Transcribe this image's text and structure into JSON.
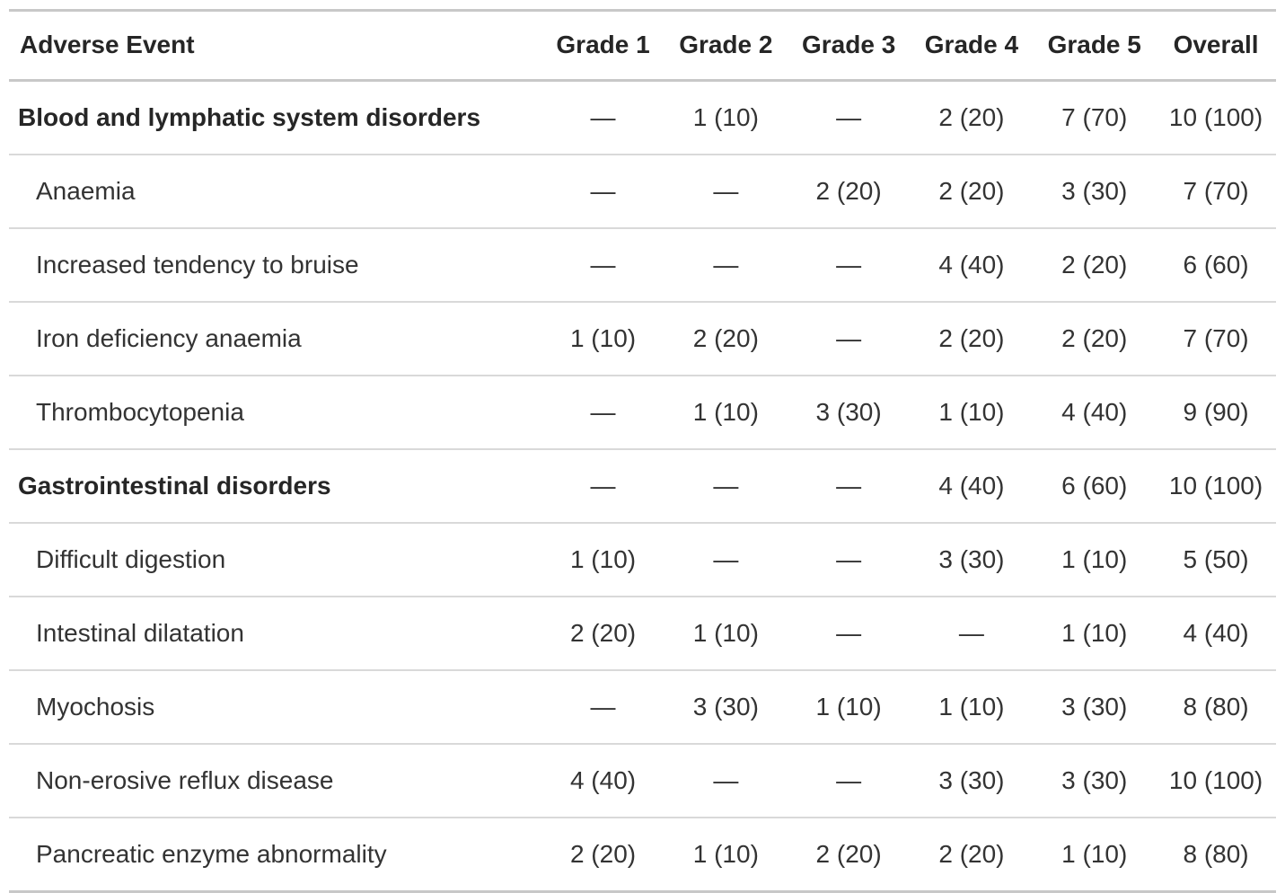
{
  "table": {
    "columns": [
      "Adverse Event",
      "Grade 1",
      "Grade 2",
      "Grade 3",
      "Grade 4",
      "Grade 5",
      "Overall"
    ],
    "rows": [
      {
        "label": "Blood and lymphatic system disorders",
        "group": true,
        "values": [
          "—",
          "1 (10)",
          "—",
          "2 (20)",
          "7 (70)",
          "10 (100)"
        ]
      },
      {
        "label": "Anaemia",
        "group": false,
        "values": [
          "—",
          "—",
          "2 (20)",
          "2 (20)",
          "3 (30)",
          "7 (70)"
        ]
      },
      {
        "label": "Increased tendency to bruise",
        "group": false,
        "values": [
          "—",
          "—",
          "—",
          "4 (40)",
          "2 (20)",
          "6 (60)"
        ]
      },
      {
        "label": "Iron deficiency anaemia",
        "group": false,
        "values": [
          "1 (10)",
          "2 (20)",
          "—",
          "2 (20)",
          "2 (20)",
          "7 (70)"
        ]
      },
      {
        "label": "Thrombocytopenia",
        "group": false,
        "values": [
          "—",
          "1 (10)",
          "3 (30)",
          "1 (10)",
          "4 (40)",
          "9 (90)"
        ]
      },
      {
        "label": "Gastrointestinal disorders",
        "group": true,
        "values": [
          "—",
          "—",
          "—",
          "4 (40)",
          "6 (60)",
          "10 (100)"
        ]
      },
      {
        "label": "Difficult digestion",
        "group": false,
        "values": [
          "1 (10)",
          "—",
          "—",
          "3 (30)",
          "1 (10)",
          "5 (50)"
        ]
      },
      {
        "label": "Intestinal dilatation",
        "group": false,
        "values": [
          "2 (20)",
          "1 (10)",
          "—",
          "—",
          "1 (10)",
          "4 (40)"
        ]
      },
      {
        "label": "Myochosis",
        "group": false,
        "values": [
          "—",
          "3 (30)",
          "1 (10)",
          "1 (10)",
          "3 (30)",
          "8 (80)"
        ]
      },
      {
        "label": "Non-erosive reflux disease",
        "group": false,
        "values": [
          "4 (40)",
          "—",
          "—",
          "3 (30)",
          "3 (30)",
          "10 (100)"
        ]
      },
      {
        "label": "Pancreatic enzyme abnormality",
        "group": false,
        "values": [
          "2 (20)",
          "1 (10)",
          "2 (20)",
          "2 (20)",
          "1 (10)",
          "8 (80)"
        ]
      }
    ]
  },
  "colors": {
    "heavy_border": "#c8c8c8",
    "row_border": "#d9d9d9",
    "header_text": "#262626",
    "body_text": "#333333",
    "background": "#ffffff"
  }
}
